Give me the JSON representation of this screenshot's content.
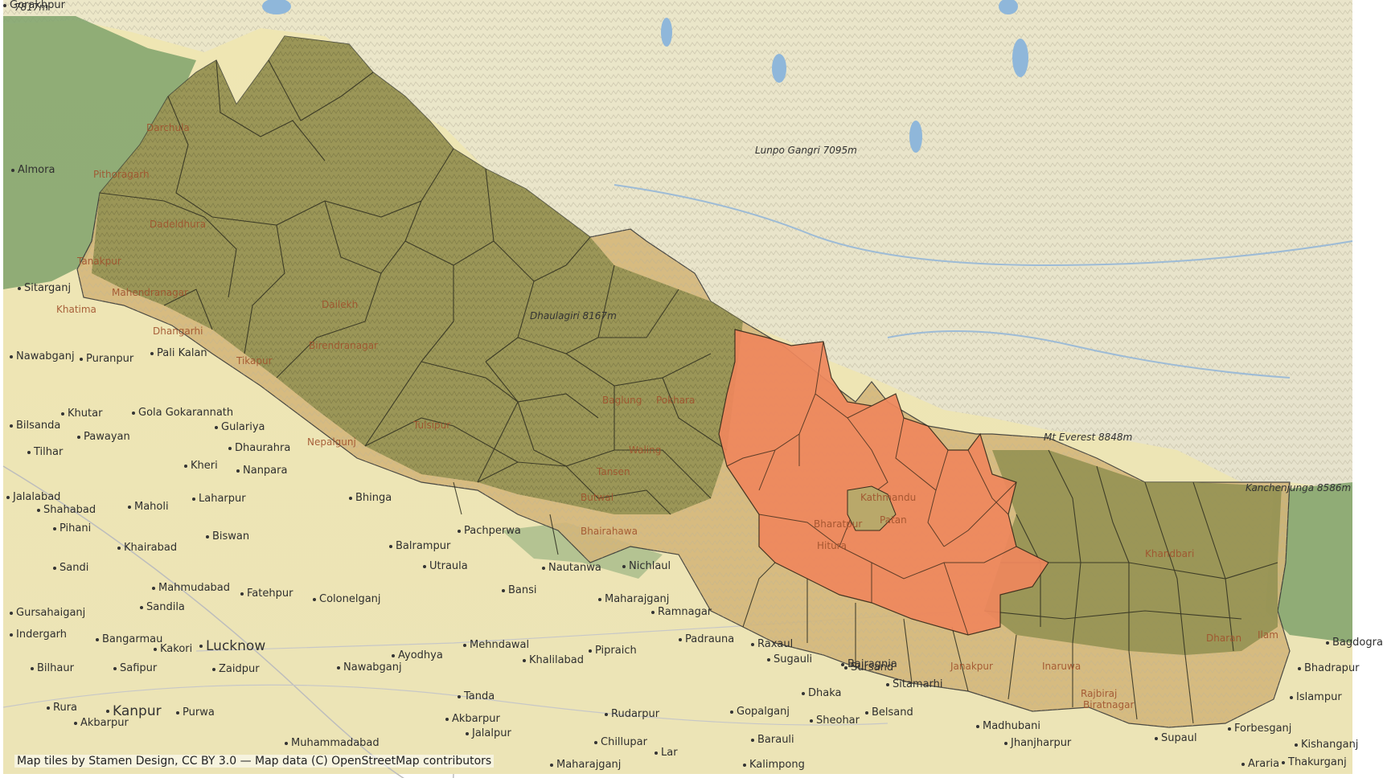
{
  "map": {
    "attribution": "Map tiles by Stamen Design, CC BY 3.0 — Map data (C) OpenStreetMap contributors",
    "colors": {
      "plain": "#eee8b7",
      "mountain_tibet": "#efe8cc",
      "forest_green": "#7fa26b",
      "region_olive": "#8e8d4e",
      "region_tan": "#d4b679",
      "highlight_orange": "#ef875d",
      "water": "#8fb7da"
    },
    "peaks": [
      {
        "name": "Lunpo Gangri",
        "elev": "7095m"
      },
      {
        "name": "Mt Everest",
        "elev": "8848m"
      },
      {
        "name": "Kanchenjunga",
        "elev": "8586m"
      },
      {
        "name": "Dhaulagiri",
        "elev": "8167m"
      },
      {
        "name": "7817m",
        "elev": ""
      }
    ],
    "district_labels": [
      "Darchula",
      "Pithoragarh",
      "Dadeldhura",
      "Tanakpur",
      "Mahendranagar",
      "Khatima",
      "Dhangarhi",
      "Dailekh",
      "Birendranagar",
      "Tikapur",
      "Nepalgunj",
      "Tulsipur",
      "Baglung",
      "Pokhara",
      "Waling",
      "Tansen",
      "Butwal",
      "Bhairahawa",
      "Kathmandu",
      "Patan",
      "Bharatpur",
      "Hitura",
      "Khandbari",
      "Dharan",
      "Ilam",
      "Janakpur",
      "Biratnagar",
      "Rajbiraj",
      "Inaruwa"
    ],
    "places": [
      "Almora",
      "Sitarganj",
      "Nawabganj",
      "Puranpur",
      "Pali Kalan",
      "Gola Gokarannath",
      "Khutar",
      "Bilsanda",
      "Tilhar",
      "Pawayan",
      "Gulariya",
      "Dhaurahra",
      "Kheri",
      "Nanpara",
      "Bhinga",
      "Jalalabad",
      "Shahabad",
      "Pihani",
      "Maholi",
      "Laharpur",
      "Biswan",
      "Khairabad",
      "Sandi",
      "Mahmudabad",
      "Sandila",
      "Fatehpur",
      "Balrampur",
      "Utraula",
      "Pachperwa",
      "Colonelganj",
      "Bansi",
      "Nautanwa",
      "Nichlaul",
      "Maharajganj",
      "Ramnagar",
      "Padrauna",
      "Raxaul",
      "Sugauli",
      "Lucknow",
      "Kakori",
      "Bangarmau",
      "Safipur",
      "Zaidpur",
      "Nawabganj",
      "Ayodhya",
      "Mehndawal",
      "Khalilabad",
      "Pipraich",
      "Bilhaur",
      "Indergarh",
      "Gursahaiganj",
      "Kanpur",
      "Purwa",
      "Rura",
      "Akbarpur",
      "Tanda",
      "Akbarpur",
      "Jalalpur",
      "Rudarpur",
      "Chillupar",
      "Lar",
      "Gopalganj",
      "Barauli",
      "Sheohar",
      "Dhaka",
      "Sitamarhi",
      "Belsand",
      "Bairagnia",
      "Sursand",
      "Madhubani",
      "Jhanjharpur",
      "Supaul",
      "Forbesganj",
      "Thakurganj",
      "Araria",
      "Kishanganj",
      "Islampur",
      "Bhadrapur",
      "Bagdogra",
      "Kalimpong",
      "Maharajganj",
      "Muhammadabad",
      "Gorakhpur"
    ]
  }
}
